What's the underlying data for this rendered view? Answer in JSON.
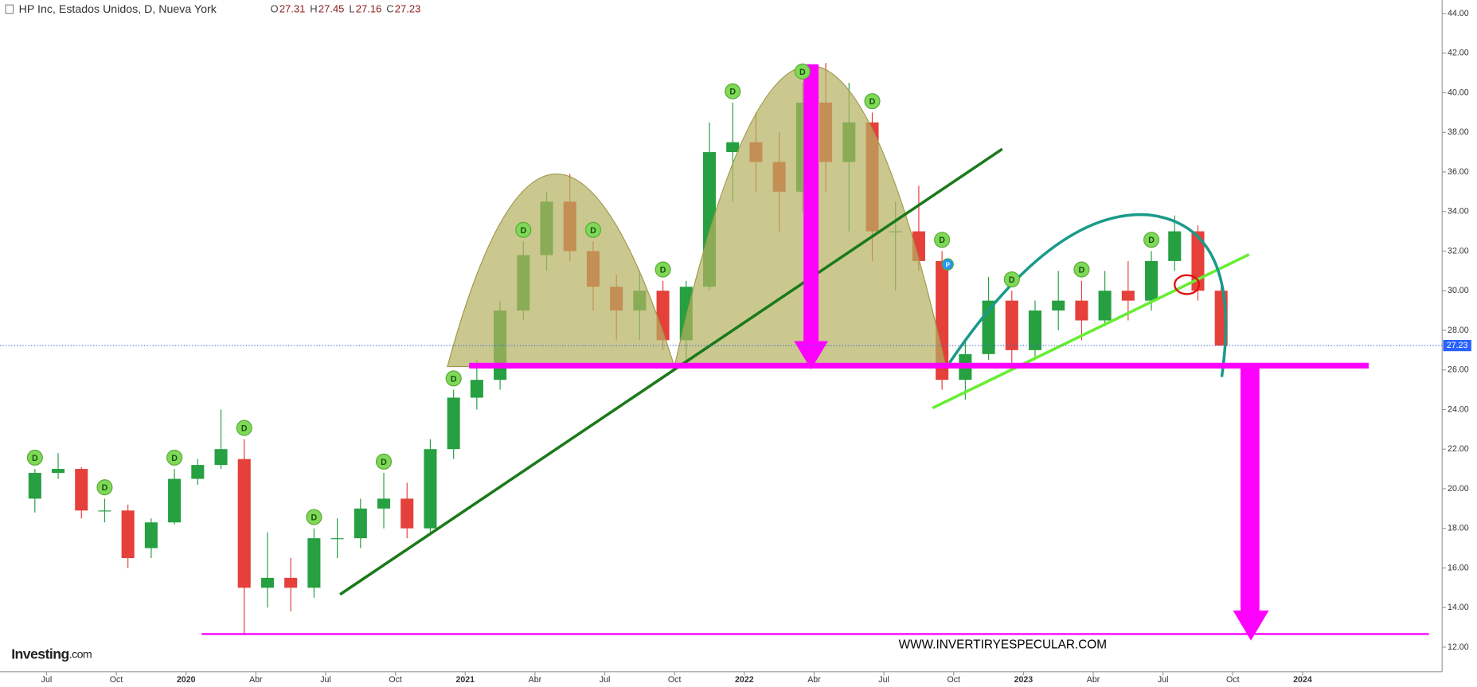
{
  "chart_data": {
    "type": "candlestick",
    "title": "HP Inc, Estados Unidos, D, Nueva York",
    "quote": [
      {
        "label": "O",
        "value": 27.31
      },
      {
        "label": "H",
        "value": 27.45
      },
      {
        "label": "L",
        "value": 27.16
      },
      {
        "label": "C",
        "value": 27.23
      }
    ],
    "watermark": "WWW.INVERTIRYESPECULAR.COM",
    "source_logo": "Investing",
    "source_logo_suffix": ".com",
    "x": [
      "2019-06",
      "2019-07",
      "2019-08",
      "2019-09",
      "2019-10",
      "2019-11",
      "2019-12",
      "2020-01",
      "2020-02",
      "2020-03",
      "2020-04",
      "2020-05",
      "2020-06",
      "2020-07",
      "2020-08",
      "2020-09",
      "2020-10",
      "2020-11",
      "2020-12",
      "2021-01",
      "2021-02",
      "2021-03",
      "2021-04",
      "2021-05",
      "2021-06",
      "2021-07",
      "2021-08",
      "2021-09",
      "2021-10",
      "2021-11",
      "2021-12",
      "2022-01",
      "2022-02",
      "2022-03",
      "2022-04",
      "2022-05",
      "2022-06",
      "2022-07",
      "2022-08",
      "2022-09",
      "2022-10",
      "2022-11",
      "2022-12",
      "2023-01",
      "2023-02",
      "2023-03",
      "2023-04",
      "2023-05",
      "2023-06",
      "2023-07",
      "2023-08",
      "2023-09"
    ],
    "open": [
      19.5,
      20.8,
      21,
      18.9,
      18.9,
      17,
      18.3,
      20.5,
      21.2,
      21.5,
      15,
      15.5,
      15,
      17.5,
      17.5,
      19,
      19.5,
      18,
      22,
      24.6,
      25.5,
      29,
      31.8,
      34.5,
      32,
      30.2,
      29,
      30,
      27.5,
      30.2,
      37,
      37.5,
      36.5,
      35,
      39.5,
      36.5,
      38.5,
      33,
      33,
      31.5,
      25.5,
      26.8,
      29.5,
      27,
      29,
      29.5,
      28.5,
      30,
      29.5,
      31.5,
      33,
      30
    ],
    "high": [
      21,
      21.8,
      21.1,
      19.5,
      19.2,
      18.5,
      21,
      21.5,
      24,
      22.5,
      17.8,
      16.5,
      18,
      18.5,
      19.5,
      20.8,
      20.3,
      22.5,
      25,
      26.5,
      29.5,
      32.5,
      35,
      35.9,
      32.5,
      30.8,
      31,
      30.5,
      30.5,
      38.5,
      39.5,
      39,
      38,
      40.5,
      41.5,
      40.5,
      39,
      34.5,
      35.3,
      32,
      27.5,
      30.7,
      30,
      29.5,
      31,
      30.5,
      31,
      31.5,
      32,
      33.8,
      33.3,
      30.5
    ],
    "low": [
      18.8,
      20.5,
      18.5,
      18.3,
      16,
      16.5,
      18.2,
      20.2,
      21,
      12.6,
      14,
      13.8,
      14.5,
      16.5,
      17,
      18,
      17.5,
      17.8,
      21.5,
      24,
      25,
      28.5,
      31,
      31.5,
      29,
      27.5,
      27.5,
      27,
      26.5,
      30,
      34.5,
      35,
      33,
      34,
      35,
      33,
      31.5,
      30,
      31,
      25,
      24.5,
      26.5,
      26.3,
      26.5,
      28,
      27.5,
      28.2,
      28.5,
      29,
      31,
      29.5,
      27.2
    ],
    "close": [
      20.8,
      21,
      18.9,
      18.9,
      16.5,
      18.3,
      20.5,
      21.2,
      22,
      15,
      15.5,
      15,
      17.5,
      17.5,
      19,
      19.5,
      18,
      22,
      24.6,
      25.5,
      29,
      31.8,
      34.5,
      32,
      30.2,
      29,
      30,
      27.5,
      30.2,
      37,
      37.5,
      36.5,
      35,
      39.5,
      36.5,
      38.5,
      33,
      33,
      31.5,
      25.5,
      26.8,
      29.5,
      27,
      29,
      29.5,
      28.5,
      30,
      29.5,
      31.5,
      33,
      30,
      27.23
    ],
    "up_color": "#26a041",
    "down_color": "#e5403a",
    "markers": [
      {
        "x": "2019-06",
        "label": "D"
      },
      {
        "x": "2019-09",
        "label": "D"
      },
      {
        "x": "2019-12",
        "label": "D"
      },
      {
        "x": "2020-03",
        "label": "D"
      },
      {
        "x": "2020-06",
        "label": "D"
      },
      {
        "x": "2020-09",
        "label": "D"
      },
      {
        "x": "2020-12",
        "label": "D"
      },
      {
        "x": "2021-03",
        "label": "D"
      },
      {
        "x": "2021-06",
        "label": "D"
      },
      {
        "x": "2021-09",
        "label": "D"
      },
      {
        "x": "2021-12",
        "label": "D"
      },
      {
        "x": "2022-03",
        "label": "D"
      },
      {
        "x": "2022-06",
        "label": "D"
      },
      {
        "x": "2022-09",
        "label": "D"
      },
      {
        "x": "2022-09",
        "label": "P"
      },
      {
        "x": "2022-12",
        "label": "D"
      },
      {
        "x": "2023-03",
        "label": "D"
      },
      {
        "x": "2023-06",
        "label": "D"
      }
    ],
    "marker_colors": {
      "D": "#7ed957",
      "P": "#2196f3"
    },
    "xlim": [
      "2019-05",
      "2024-07"
    ],
    "xticks": [
      {
        "value": "2019-07",
        "label": "Jul"
      },
      {
        "value": "2019-10",
        "label": "Oct"
      },
      {
        "value": "2020-01",
        "label": "2020"
      },
      {
        "value": "2020-04",
        "label": "Abr"
      },
      {
        "value": "2020-07",
        "label": "Jul"
      },
      {
        "value": "2020-10",
        "label": "Oct"
      },
      {
        "value": "2021-01",
        "label": "2021"
      },
      {
        "value": "2021-04",
        "label": "Abr"
      },
      {
        "value": "2021-07",
        "label": "Jul"
      },
      {
        "value": "2021-10",
        "label": "Oct"
      },
      {
        "value": "2022-01",
        "label": "2022"
      },
      {
        "value": "2022-04",
        "label": "Abr"
      },
      {
        "value": "2022-07",
        "label": "Jul"
      },
      {
        "value": "2022-10",
        "label": "Oct"
      },
      {
        "value": "2023-01",
        "label": "2023"
      },
      {
        "value": "2023-04",
        "label": "Abr"
      },
      {
        "value": "2023-07",
        "label": "Jul"
      },
      {
        "value": "2023-10",
        "label": "Oct"
      },
      {
        "value": "2024-01",
        "label": "2024"
      }
    ],
    "ylim": [
      10.76,
      44.67
    ],
    "yticks": [
      {
        "value": 12,
        "label": "12.00"
      },
      {
        "value": 14,
        "label": "14.00"
      },
      {
        "value": 16,
        "label": "16.00"
      },
      {
        "value": 18,
        "label": "18.00"
      },
      {
        "value": 20,
        "label": "20.00"
      },
      {
        "value": 22,
        "label": "22.00"
      },
      {
        "value": 24,
        "label": "24.00"
      },
      {
        "value": 26,
        "label": "26.00"
      },
      {
        "value": 28,
        "label": "28.00"
      },
      {
        "value": 30,
        "label": "30.00"
      },
      {
        "value": 32,
        "label": "32.00"
      },
      {
        "value": 34,
        "label": "34.00"
      },
      {
        "value": 36,
        "label": "36.00"
      },
      {
        "value": 38,
        "label": "38.00"
      },
      {
        "value": 40,
        "label": "40.00"
      },
      {
        "value": 42,
        "label": "42.00"
      },
      {
        "value": 44,
        "label": "44.00"
      }
    ]
  }
}
